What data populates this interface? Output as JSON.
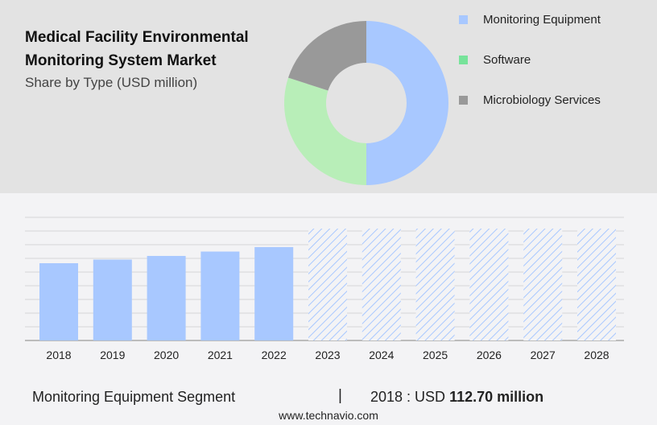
{
  "header": {
    "title": "Medical Facility Environmental Monitoring System Market",
    "subtitle": "Share by Type (USD million)"
  },
  "chart_data": [
    {
      "type": "pie",
      "variant": "donut",
      "slices": [
        {
          "name": "Monitoring Equipment",
          "value": 50,
          "color": "#a8c8ff"
        },
        {
          "name": "Software",
          "value": 30,
          "color": "#b8eeb8"
        },
        {
          "name": "Microbiology Services",
          "value": 20,
          "color": "#999999"
        }
      ],
      "legend": {
        "placement": "right",
        "colors": [
          "#a8c8ff",
          "#77e39a",
          "#999999"
        ]
      }
    },
    {
      "type": "bar",
      "categories": [
        "2018",
        "2019",
        "2020",
        "2021",
        "2022",
        "2023",
        "2024",
        "2025",
        "2026",
        "2027",
        "2028"
      ],
      "values": [
        112.7,
        118,
        123.3,
        129.7,
        136.2,
        null,
        null,
        null,
        null,
        null,
        null
      ],
      "forecast": [
        "2023",
        "2024",
        "2025",
        "2026",
        "2027",
        "2028"
      ],
      "bar_color": "#a8c8ff",
      "forecast_style": "hatched",
      "grid": true,
      "ylim": [
        0,
        180
      ]
    }
  ],
  "footer": {
    "segment": "Monitoring Equipment Segment",
    "separator": "|",
    "year_label": "2018 : USD ",
    "value": "112.70 million",
    "site": "www.technavio.com"
  }
}
